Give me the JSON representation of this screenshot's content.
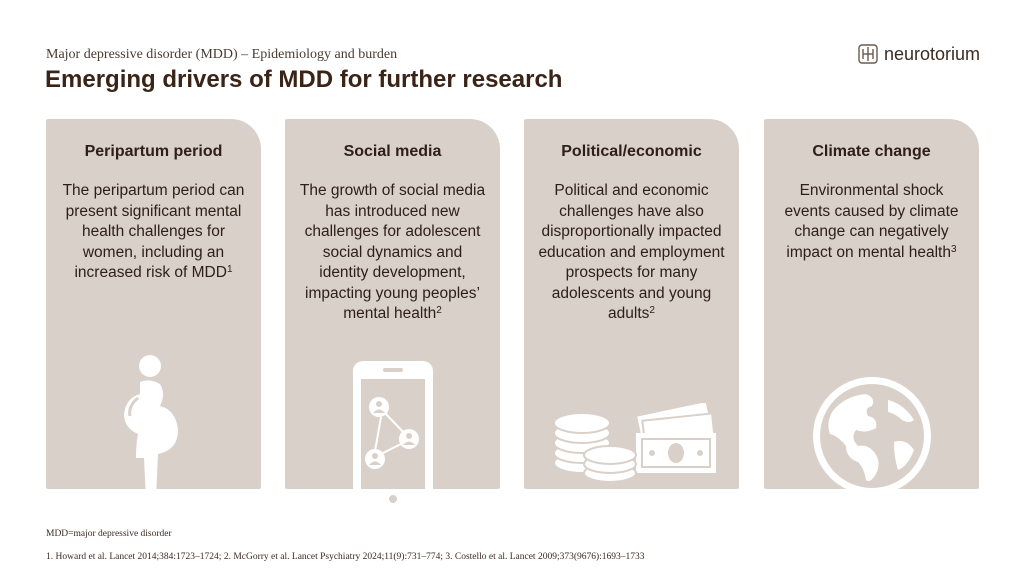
{
  "header": {
    "subtitle": "Major depressive disorder (MDD) – Epidemiology and burden",
    "title": "Emerging drivers of MDD for further research",
    "logo_text": "neurotorium"
  },
  "cards": [
    {
      "title": "Peripartum period",
      "text": "The peripartum period can present significant mental health challenges for women, including an increased risk of MDD",
      "ref": "1",
      "icon": "pregnant-woman-icon"
    },
    {
      "title": "Social media",
      "text": "The growth of social media has introduced new challenges for adolescent social dynamics and identity development, impacting young peoples’ mental health",
      "ref": "2",
      "icon": "smartphone-network-icon"
    },
    {
      "title": "Political/economic",
      "text": "Political and economic challenges have also disproportionally impacted education and employment prospects for many adolescents and young adults",
      "ref": "2",
      "icon": "coins-banknotes-icon"
    },
    {
      "title": "Climate change",
      "text": "Environmental shock events caused by climate change can negatively impact on mental health",
      "ref": "3",
      "icon": "globe-icon"
    }
  ],
  "footer": {
    "abbreviation": "MDD=major depressive disorder",
    "references": "1. Howard et al. Lancet 2014;384:1723–1724; 2. McGorry et al. Lancet Psychiatry 2024;11(9):731–774; 3. Costello et al. Lancet 2009;373(9676):1693–1733"
  },
  "colors": {
    "card_bg": "#d9d0c9",
    "title": "#3a2418",
    "icon_white": "#ffffff"
  }
}
